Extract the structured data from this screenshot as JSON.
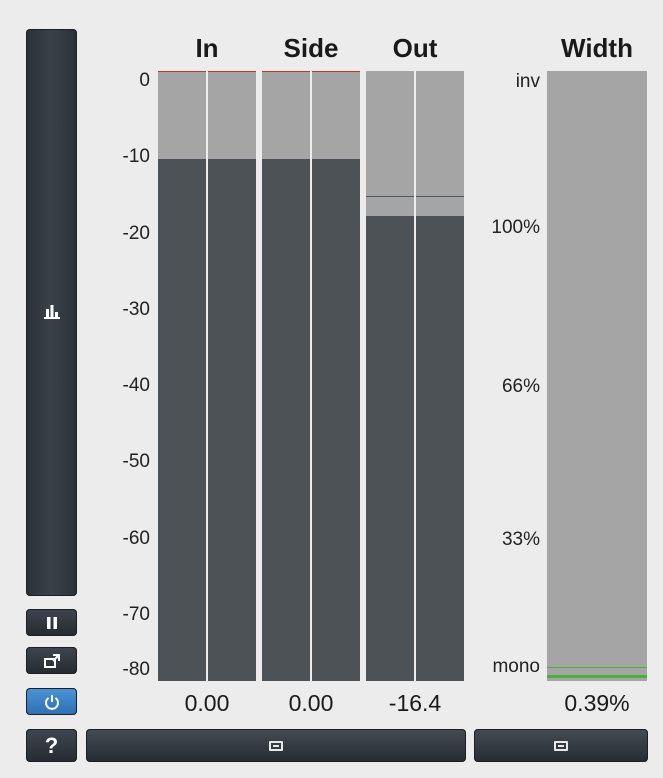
{
  "headers": {
    "in": "In",
    "side": "Side",
    "out": "Out",
    "width": "Width"
  },
  "scale": [
    "0",
    "-10",
    "-20",
    "-30",
    "-40",
    "-50",
    "-60",
    "-70",
    "-80"
  ],
  "width_scale": [
    "inv",
    "100%",
    "66%",
    "33%",
    "mono"
  ],
  "meters": {
    "in": {
      "value": "0.00",
      "level_db": -11.5,
      "peak_db": 0.0,
      "peak_color": "#c0392b"
    },
    "side": {
      "value": "0.00",
      "level_db": -11.5,
      "peak_db": 0.0,
      "peak_color": "#c0392b"
    },
    "out": {
      "value": "-16.4",
      "level_db": -19.0,
      "peak_db": -16.4,
      "peak_color": "#555a5f"
    }
  },
  "width_meter": {
    "value": "0.39%",
    "level_percent": 0.39,
    "color": "#4caf3c"
  },
  "icons": {
    "left_panel": "bar-chart-icon",
    "pause": "pause-icon",
    "detach": "detach-window-icon",
    "power": "power-icon",
    "help": "help-icon",
    "expand": "expand-horizontal-icon"
  },
  "help_label": "?",
  "colors": {
    "accent": "#3b82c9",
    "meter_bg": "#a5a5a5",
    "meter_fill": "#4d5257"
  }
}
